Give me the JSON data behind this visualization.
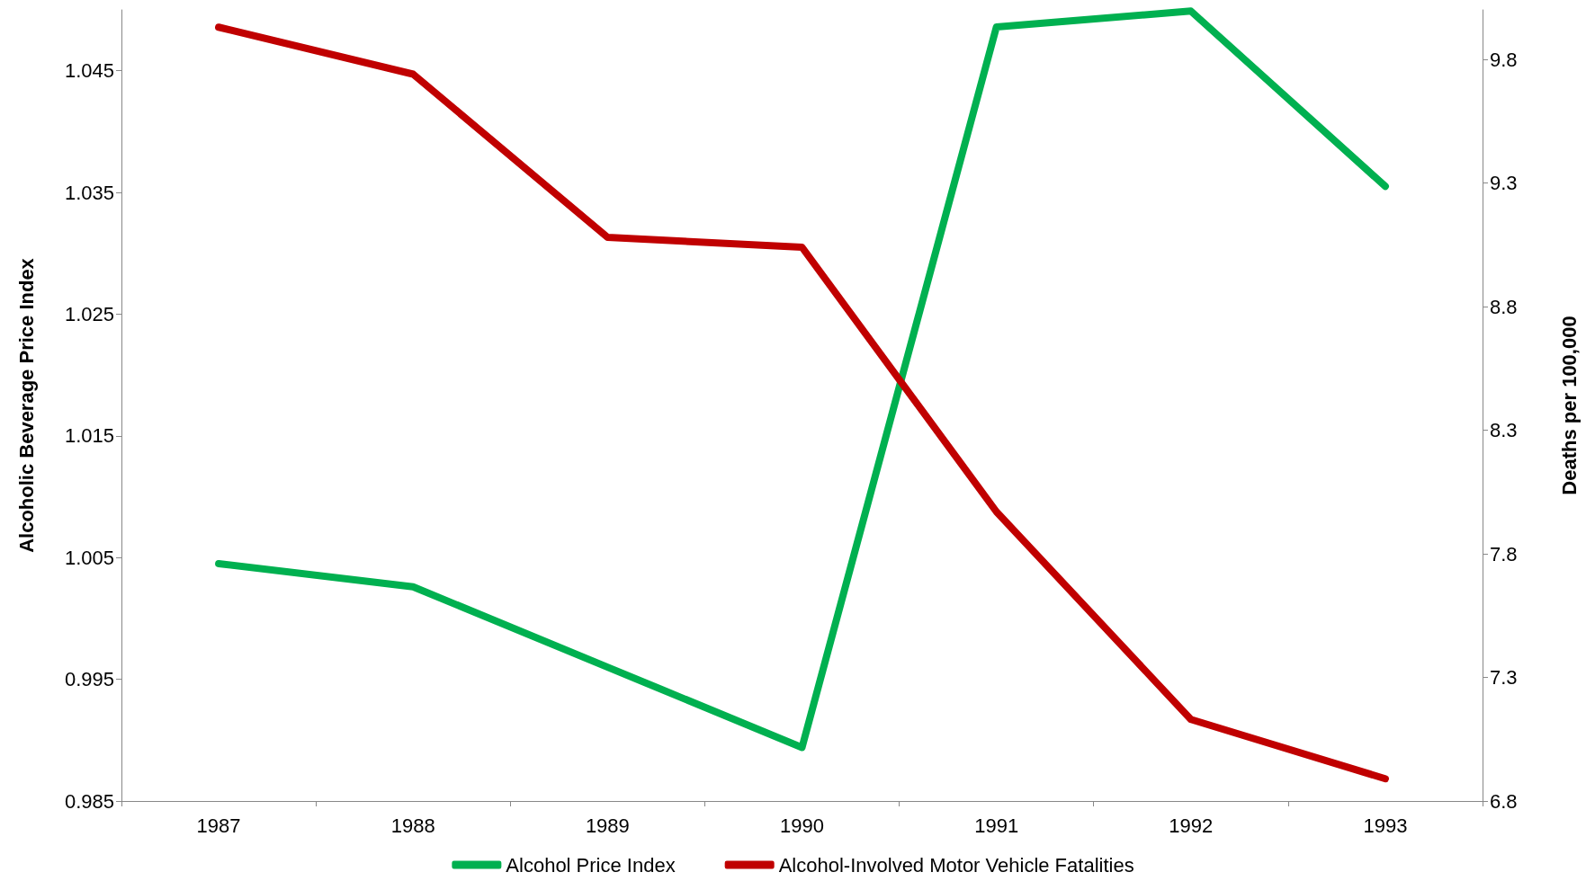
{
  "chart_data": {
    "type": "line",
    "ylabel": "Alcoholic Beverage Price Index",
    "y2label": "Deaths per 100,000",
    "categories": [
      "1987",
      "1988",
      "1989",
      "1990",
      "1991",
      "1992",
      "1993"
    ],
    "series": [
      {
        "name": "Alcohol Price Index",
        "color": "#00b050",
        "values": [
          1.0045,
          1.0026,
          0.996,
          0.9894,
          1.0486,
          1.0499,
          1.0355
        ]
      },
      {
        "name": "Alcohol-Involved Motor Vehicle Fatalities",
        "color": "#c00000",
        "axis": "y2",
        "values": [
          9.93,
          9.74,
          9.08,
          9.04,
          7.97,
          7.13,
          6.89
        ]
      }
    ],
    "ylim": [
      0.985,
      1.05
    ],
    "yticks": [
      0.985,
      0.995,
      1.005,
      1.015,
      1.025,
      1.035,
      1.045
    ],
    "y2lim": [
      6.8,
      10.0
    ],
    "y2ticks": [
      6.8,
      7.3,
      7.8,
      8.3,
      8.8,
      9.3,
      9.8
    ],
    "grid": false,
    "legend": "bottom",
    "marker": "none",
    "line_style": "solid"
  }
}
